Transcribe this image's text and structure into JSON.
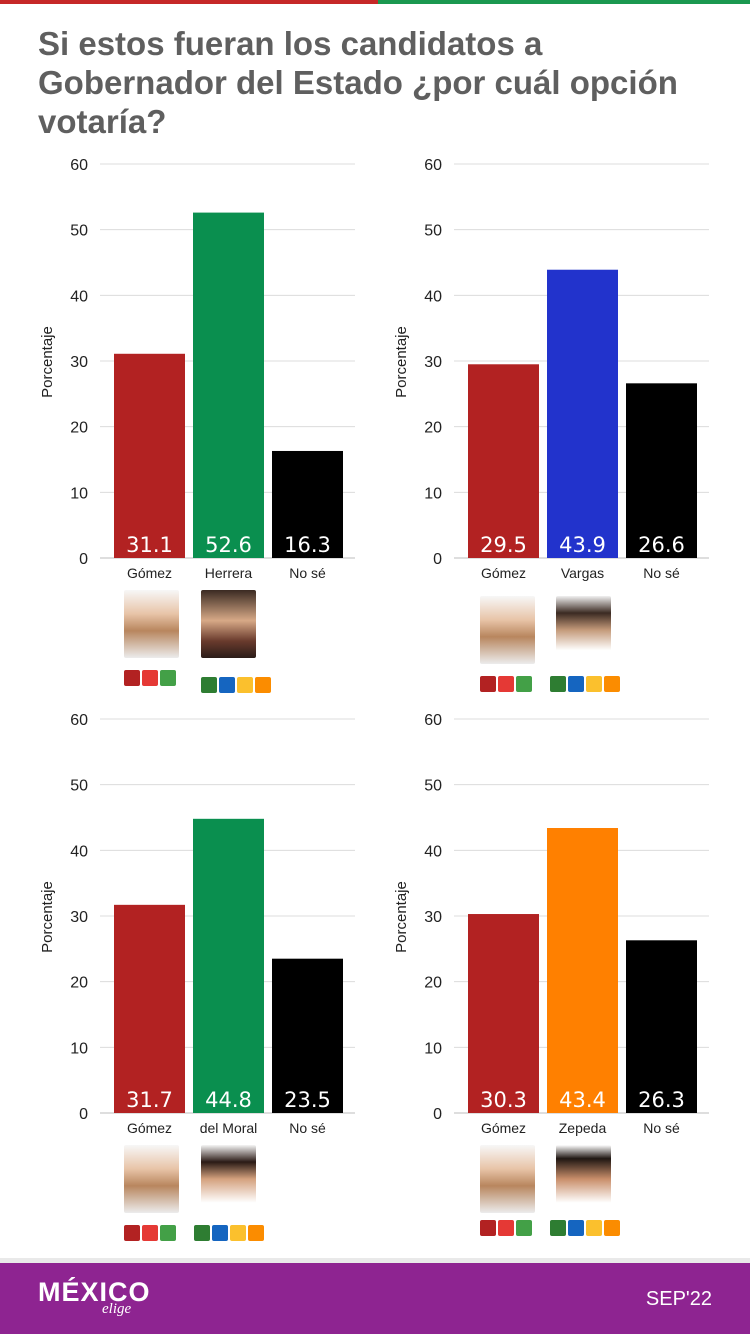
{
  "title": "Si estos fueran los candidatos a Gobernador del Estado ¿por cuál opción votaría?",
  "footer": {
    "brand": "MÉXICO",
    "brand_sub": "elige",
    "date": "SEP'22"
  },
  "colors": {
    "morena_red": "#b22222",
    "green": "#0a8f4f",
    "blue": "#2233cc",
    "orange": "#ff8000",
    "black": "#000000",
    "footer_purple": "#8e2491"
  },
  "chart_data": [
    {
      "type": "bar",
      "categories": [
        "Gómez",
        "Herrera",
        "No sé"
      ],
      "values": [
        31.1,
        52.6,
        16.3
      ],
      "value_labels": [
        "31.1",
        "52.6",
        "16.3"
      ],
      "colors": [
        "#b22222",
        "#0a8f4f",
        "#000000"
      ],
      "ylabel": "Porcentaje",
      "ylim": [
        0,
        60
      ],
      "yticks": [
        "0",
        "10",
        "20",
        "30",
        "40",
        "50",
        "60"
      ],
      "grid": true
    },
    {
      "type": "bar",
      "categories": [
        "Gómez",
        "Vargas",
        "No sé"
      ],
      "values": [
        29.5,
        43.9,
        26.6
      ],
      "value_labels": [
        "29.5",
        "43.9",
        "26.6"
      ],
      "colors": [
        "#b22222",
        "#2233cc",
        "#000000"
      ],
      "ylabel": "Porcentaje",
      "ylim": [
        0,
        60
      ],
      "yticks": [
        "0",
        "10",
        "20",
        "30",
        "40",
        "50",
        "60"
      ],
      "grid": true
    },
    {
      "type": "bar",
      "categories": [
        "Gómez",
        "del Moral",
        "No sé"
      ],
      "values": [
        31.7,
        44.8,
        23.5
      ],
      "value_labels": [
        "31.7",
        "44.8",
        "23.5"
      ],
      "colors": [
        "#b22222",
        "#0a8f4f",
        "#000000"
      ],
      "ylabel": "Porcentaje",
      "ylim": [
        0,
        60
      ],
      "yticks": [
        "0",
        "10",
        "20",
        "30",
        "40",
        "50",
        "60"
      ],
      "grid": true
    },
    {
      "type": "bar",
      "categories": [
        "Gómez",
        "Zepeda",
        "No sé"
      ],
      "values": [
        30.3,
        43.4,
        26.3
      ],
      "value_labels": [
        "30.3",
        "43.4",
        "26.3"
      ],
      "colors": [
        "#b22222",
        "#ff8000",
        "#000000"
      ],
      "ylabel": "Porcentaje",
      "ylim": [
        0,
        60
      ],
      "yticks": [
        "0",
        "10",
        "20",
        "30",
        "40",
        "50",
        "60"
      ],
      "grid": true
    }
  ]
}
